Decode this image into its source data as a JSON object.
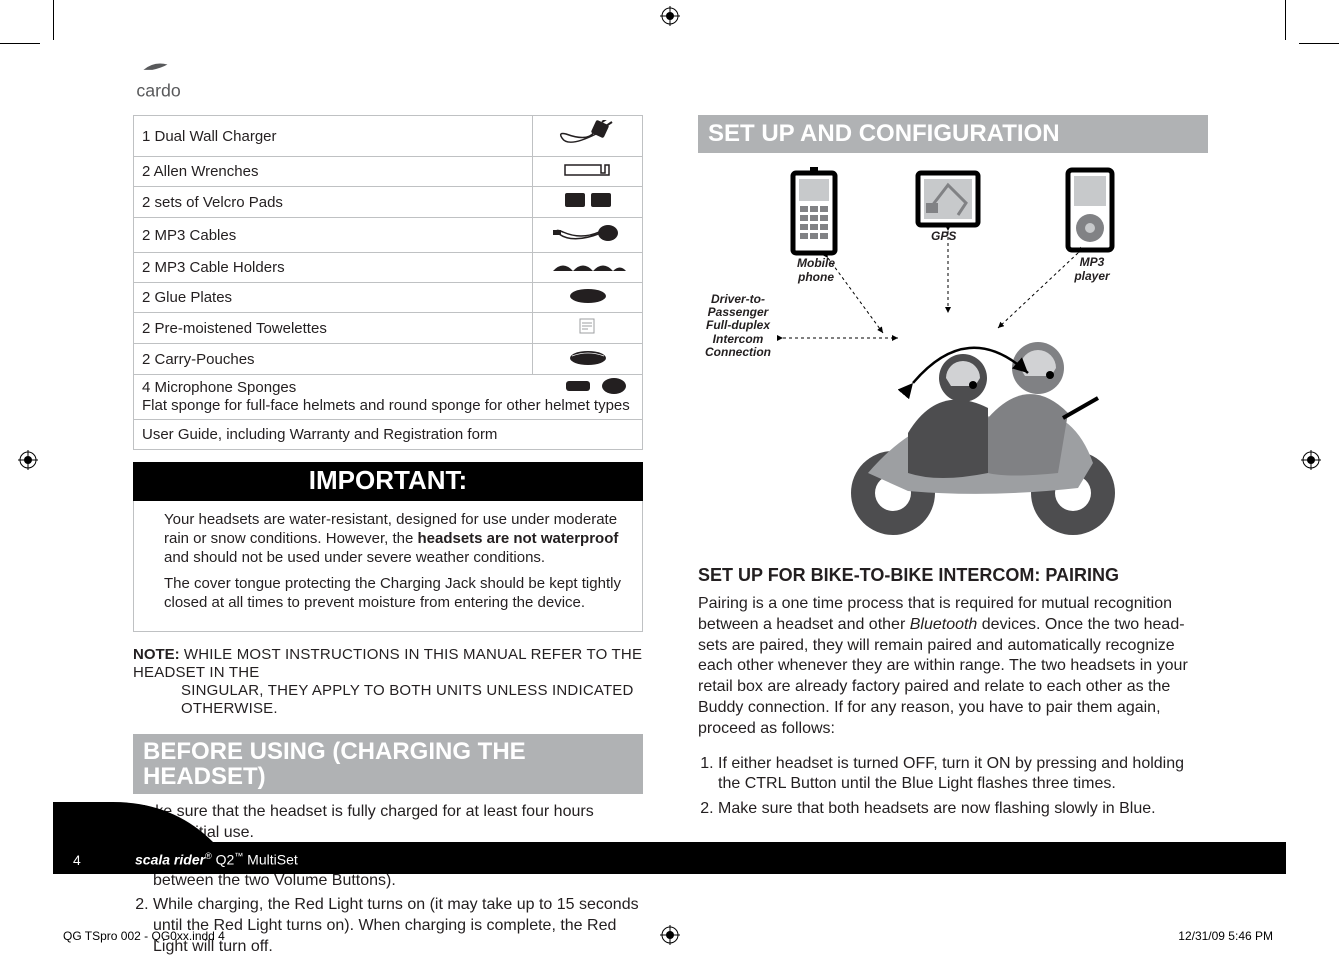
{
  "brand": "cardo",
  "parts": [
    {
      "label": "1 Dual Wall Charger",
      "icon": "charger"
    },
    {
      "label": "2 Allen Wrenches",
      "icon": "wrench"
    },
    {
      "label": "2 sets of Velcro Pads",
      "icon": "pads"
    },
    {
      "label": "2 MP3 Cables",
      "icon": "cable"
    },
    {
      "label": "2 MP3 Cable Holders",
      "icon": "holders"
    },
    {
      "label": "2 Glue Plates",
      "icon": "plate"
    },
    {
      "label": "2 Pre-moistened Towelettes",
      "icon": "towelette"
    },
    {
      "label": "2 Carry-Pouches",
      "icon": "pouch"
    }
  ],
  "sponges_line1": "4 Microphone Sponges",
  "sponges_line2": "Flat sponge for full-face helmets and round sponge for other helmet types",
  "userguide_row": "User Guide, including Warranty and Registration form",
  "important_label": "IMPORTANT:",
  "important_p1a": "Your headsets are water-resistant, designed for use under moderate rain or snow conditions. However, the ",
  "important_p1b": "headsets are not waterproof",
  "important_p1c": " and should not be used under severe weather conditions.",
  "important_p2": "The cover tongue protecting the Charging Jack should be kept tightly closed at all times to prevent moisture from entering the device.",
  "note_label": "NOTE: ",
  "note_body1": "WHILE MOST INSTRUCTIONS IN THIS MANUAL REFER TO THE HEADSET IN THE ",
  "note_body2": "SINGULAR, THEY APPLY TO BOTH UNITS UNLESS INDICATED OTHERWISE.",
  "before_hdr": "BEFORE USING (CHARGING THE HEADSET)",
  "before_body": "Make sure that the headset is fully charged for at least four hours before initial use.",
  "before_steps": [
    "Connect the wall charger to the headset's Charging Jack (located between the two Volume Buttons).",
    "While charging, the Red Light turns on (it may take up to 15 seconds until the Red Light turns on). When charging is complete, the Red Light will turn off."
  ],
  "setup_hdr": "SET UP AND CONFIGURATION",
  "diagram_labels": {
    "mobile": "Mobile phone",
    "gps": "GPS",
    "mp3": "MP3 player",
    "intercom": "Driver-to-\nPassenger\nFull-duplex\nIntercom\nConnection"
  },
  "pair_hdr": "SET UP FOR BIKE-TO-BIKE INTERCOM: PAIRING",
  "pair_body_a": "Pairing is a one time process that is required for mutual recognition between a headset and other ",
  "pair_body_b": "Bluetooth",
  "pair_body_c": " devices. Once the two head­sets are paired, they will remain paired and automatically recognize each other whenever they are within range. The two headsets in your retail box are already factory paired and relate to each other as the Buddy connection. If for any reason, you have to pair them again, proceed as follows:",
  "pair_steps": [
    "If either headset is turned OFF, turn it ON by pressing and holding the CTRL Button until the Blue Light flashes three times.",
    "Make sure that both headsets are now flashing slowly in Blue."
  ],
  "page_number": "4",
  "product_a": "scala rider",
  "product_b": "®",
  "product_c": " Q2",
  "product_d": "™",
  "product_e": " MultiSet",
  "slug_left": "QG TSpro 002 - QG0xx.indd   4",
  "slug_right": "12/31/09   5:46 PM",
  "colors": {
    "header_grey": "#b0b2b4",
    "border_grey": "#bfc1c3",
    "text": "#231f20"
  }
}
